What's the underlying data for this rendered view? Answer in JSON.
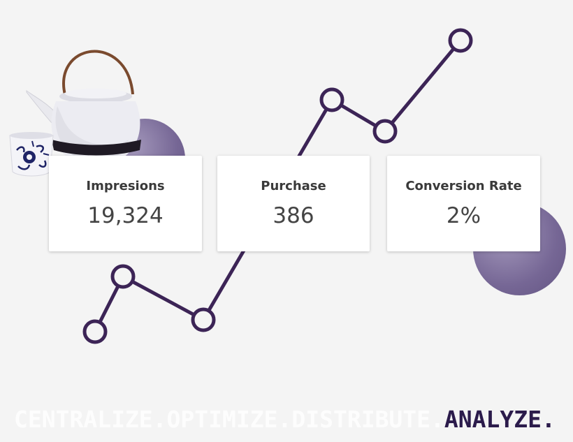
{
  "cards": [
    {
      "label": "Impresions",
      "value": "19,324"
    },
    {
      "label": "Purchase",
      "value": "386"
    },
    {
      "label": "Conversion Rate",
      "value": "2%"
    }
  ],
  "tagline": {
    "faded": [
      "CENTRALIZE.",
      "OPTIMIZE.",
      "DISTRIBUTE."
    ],
    "strong": "ANALYZE."
  },
  "colors": {
    "line": "#3c2456",
    "accent_circle": "#7a6a98",
    "background": "#f4f4f4",
    "tagline_strong": "#2b1b4b"
  },
  "images": {
    "product": "teapot-with-cup"
  }
}
